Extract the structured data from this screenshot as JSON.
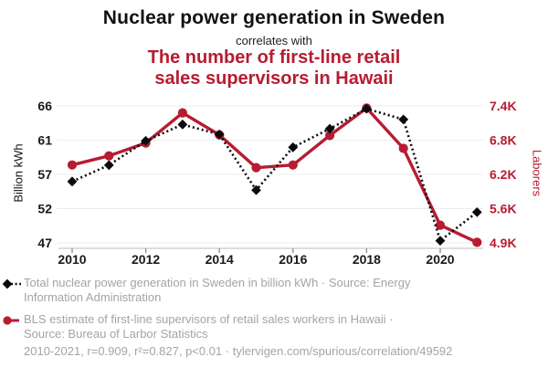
{
  "header": {
    "title": "Nuclear power generation in Sweden",
    "connector": "correlates with",
    "subtitle_line1": "The number of first-line retail",
    "subtitle_line2": "sales supervisors in Hawaii"
  },
  "colors": {
    "series_black": "#0b0b0b",
    "series_red": "#b71c32",
    "legend_text": "#a4a4a4",
    "gridline": "#ececec",
    "axis_line": "#c9c9c9",
    "tick_text": "#1a1a1a"
  },
  "chart_data": {
    "type": "line",
    "x": [
      2010,
      2011,
      2012,
      2013,
      2014,
      2015,
      2016,
      2017,
      2018,
      2019,
      2020,
      2021
    ],
    "x_ticks": [
      2010,
      2012,
      2014,
      2016,
      2018,
      2020
    ],
    "grid": true,
    "legend_position": "bottom",
    "left_axis": {
      "label": "Billion kWh",
      "tick_labels": [
        "66",
        "61",
        "57",
        "52",
        "47"
      ],
      "top": 66.3,
      "bottom": 47.1
    },
    "right_axis": {
      "label": "Laborers",
      "tick_labels": [
        "7.4K",
        "6.8K",
        "6.2K",
        "5.6K",
        "4.9K"
      ],
      "top": 7430,
      "bottom": 4880
    },
    "series": [
      {
        "name": "Total nuclear power generation in Sweden in billion kWh",
        "axis": "left",
        "marker": "diamond",
        "line": "dashed",
        "color_key": "series_black",
        "values": [
          55.7,
          58.0,
          61.4,
          63.7,
          62.3,
          54.5,
          60.5,
          63.1,
          65.9,
          64.4,
          47.4,
          51.4
        ]
      },
      {
        "name": "BLS estimate of first-line supervisors of retail sales workers in Hawaii",
        "axis": "right",
        "marker": "circle",
        "line": "solid",
        "color_key": "series_red",
        "values": [
          6330,
          6500,
          6740,
          7300,
          6890,
          6280,
          6330,
          6880,
          7390,
          6640,
          5210,
          4890
        ]
      }
    ]
  },
  "legend": {
    "entries": [
      {
        "lines": [
          "Total nuclear power generation in Sweden in billion kWh · Source: Energy",
          "Information Administration"
        ]
      },
      {
        "lines": [
          "BLS estimate of first-line supervisors of retail sales workers in Hawaii ·",
          "Source: Bureau of Larbor Statistics"
        ]
      }
    ]
  },
  "footer": {
    "text": "2010-2021, r=0.909, r²=0.827, p<0.01 · tylervigen.com/spurious/correlation/49592"
  }
}
